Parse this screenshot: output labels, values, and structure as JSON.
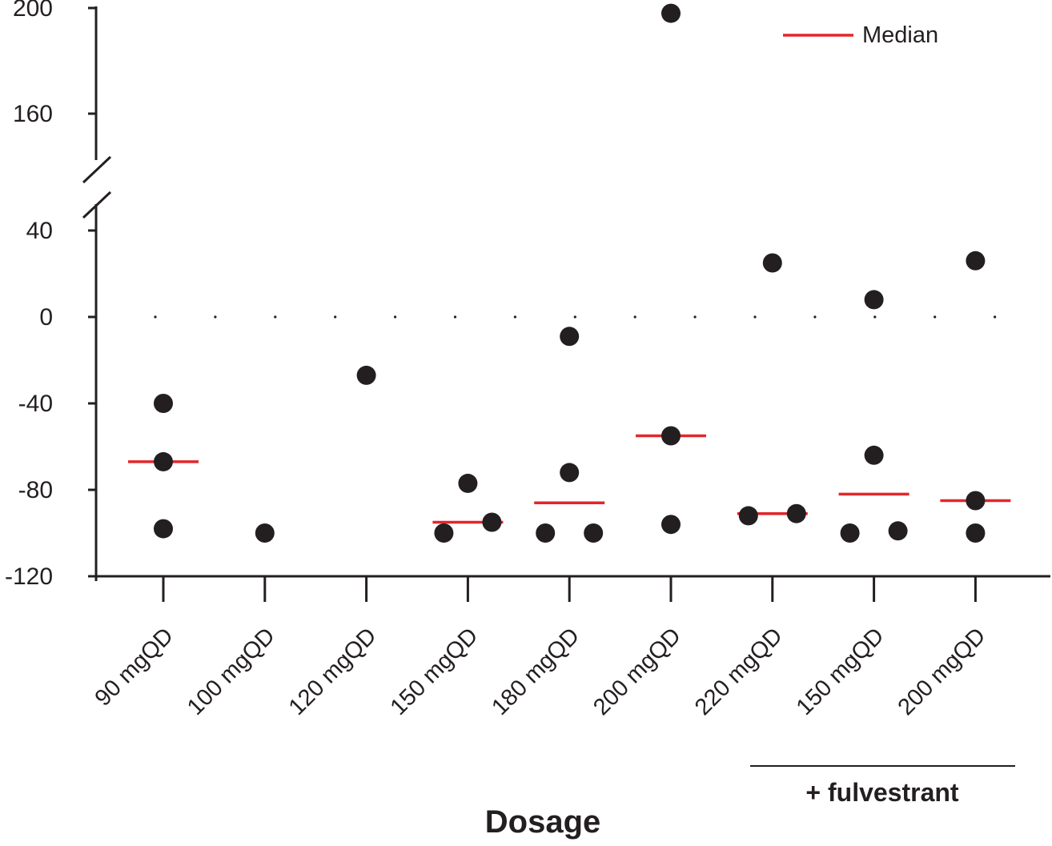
{
  "chart_data": {
    "type": "scatter",
    "xlabel": "Dosage",
    "ylabel": "",
    "categories": [
      "90 mgQD",
      "100 mgQD",
      "120 mgQD",
      "150 mgQD",
      "180 mgQD",
      "200 mgQD",
      "220 mgQD",
      "150 mgQD",
      "200 mgQD"
    ],
    "y_ticks_lower": [
      "-120",
      "-80",
      "-40",
      "0",
      "40"
    ],
    "y_ticks_upper": [
      "160",
      "200"
    ],
    "ylim_lower": [
      -120,
      40
    ],
    "ylim_upper": [
      160,
      200
    ],
    "axis_break": true,
    "reference_line": 0,
    "points": [
      {
        "category": 0,
        "values": [
          -40,
          -67,
          -98
        ]
      },
      {
        "category": 1,
        "values": [
          -100
        ]
      },
      {
        "category": 2,
        "values": [
          -27
        ]
      },
      {
        "category": 3,
        "values": [
          -100,
          -77,
          -95
        ]
      },
      {
        "category": 4,
        "values": [
          -100,
          -9,
          -72,
          -100
        ]
      },
      {
        "category": 5,
        "values": [
          198,
          -55,
          -96
        ]
      },
      {
        "category": 6,
        "values": [
          -92,
          25,
          -91
        ]
      },
      {
        "category": 7,
        "values": [
          -100,
          8,
          -64,
          -99
        ]
      },
      {
        "category": 8,
        "values": [
          26,
          -85,
          -100
        ]
      }
    ],
    "medians": [
      -67,
      null,
      null,
      -95,
      -86,
      -55,
      -91,
      -82,
      -85
    ],
    "legend": {
      "label": "Median",
      "color": "#e3262b",
      "position": "top-right"
    },
    "group_annotation": {
      "label": "+ fulvestrant",
      "categories": [
        7,
        8
      ]
    },
    "point_color": "#231f20"
  }
}
